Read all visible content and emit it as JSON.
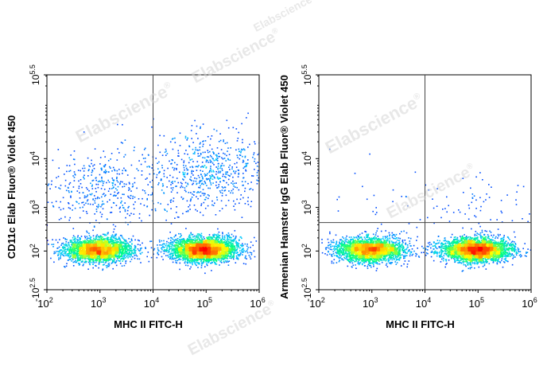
{
  "watermark": {
    "text": "Elabscience",
    "mark": "®"
  },
  "chart_data": [
    {
      "type": "scatter",
      "subtype": "flow-cytometry-density-dot-plot",
      "xlabel": "MHC II FITC-H",
      "ylabel": "CD11c  Elab Fluor® Violet 450",
      "x_scale": "log",
      "y_scale": "biexponential",
      "xlim": [
        100,
        1000000
      ],
      "ylim": [
        -316,
        316228
      ],
      "x_ticks": [
        {
          "base": "10",
          "exp": "2",
          "value": 100
        },
        {
          "base": "10",
          "exp": "3",
          "value": 1000
        },
        {
          "base": "10",
          "exp": "4",
          "value": 10000
        },
        {
          "base": "10",
          "exp": "5",
          "value": 100000
        },
        {
          "base": "10",
          "exp": "6",
          "value": 1000000
        }
      ],
      "y_ticks": [
        {
          "base": "-10",
          "exp": "2.5",
          "value": -316
        },
        {
          "base": "10",
          "exp": "2",
          "value": 100
        },
        {
          "base": "10",
          "exp": "3",
          "value": 1000
        },
        {
          "base": "10",
          "exp": "4",
          "value": 10000
        },
        {
          "base": "10",
          "exp": "5.5",
          "value": 316228
        }
      ],
      "quadrant_gate": {
        "x": 10000,
        "y": 450
      },
      "grid": false,
      "legend": "none",
      "colormap": [
        "#0000ff",
        "#00c8ff",
        "#00ff80",
        "#ffff00",
        "#ff8000",
        "#ff0000"
      ],
      "populations": [
        {
          "center": [
            900,
            110
          ],
          "count": 2600
        },
        {
          "center": [
            90000,
            110
          ],
          "count": 3200
        },
        {
          "center": [
            1200,
            2500
          ],
          "count": 420
        },
        {
          "center": [
            110000,
            5500
          ],
          "count": 650
        }
      ]
    },
    {
      "type": "scatter",
      "subtype": "flow-cytometry-density-dot-plot",
      "xlabel": "MHC II FITC-H",
      "ylabel": "Armenian Hamster IgG Elab Fluor® Violet 450",
      "x_scale": "log",
      "y_scale": "biexponential",
      "xlim": [
        100,
        1000000
      ],
      "ylim": [
        -316,
        316228
      ],
      "x_ticks": [
        {
          "base": "10",
          "exp": "2",
          "value": 100
        },
        {
          "base": "10",
          "exp": "3",
          "value": 1000
        },
        {
          "base": "10",
          "exp": "4",
          "value": 10000
        },
        {
          "base": "10",
          "exp": "5",
          "value": 100000
        },
        {
          "base": "10",
          "exp": "6",
          "value": 1000000
        }
      ],
      "y_ticks": [
        {
          "base": "-10",
          "exp": "2.5",
          "value": -316
        },
        {
          "base": "10",
          "exp": "2",
          "value": 100
        },
        {
          "base": "10",
          "exp": "3",
          "value": 1000
        },
        {
          "base": "10",
          "exp": "4",
          "value": 10000
        },
        {
          "base": "10",
          "exp": "5.5",
          "value": 316228
        }
      ],
      "quadrant_gate": {
        "x": 10000,
        "y": 450
      },
      "grid": false,
      "legend": "none",
      "colormap": [
        "#0000ff",
        "#00c8ff",
        "#00ff80",
        "#ffff00",
        "#ff8000",
        "#ff0000"
      ],
      "populations": [
        {
          "center": [
            900,
            110
          ],
          "count": 2600
        },
        {
          "center": [
            90000,
            110
          ],
          "count": 3200
        },
        {
          "center": [
            1200,
            1200
          ],
          "count": 30
        },
        {
          "center": [
            100000,
            900
          ],
          "count": 90
        }
      ]
    }
  ]
}
